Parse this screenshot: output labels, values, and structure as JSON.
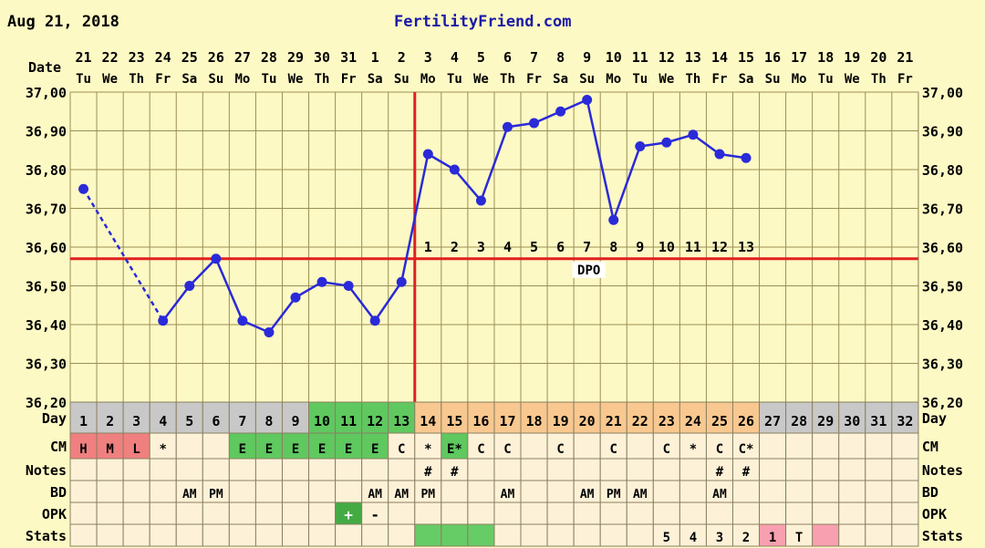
{
  "header": {
    "date": "Aug 21, 2018",
    "site": "FertilityFriend.com"
  },
  "chart_data": {
    "type": "line",
    "ylim": [
      36.2,
      37.0
    ],
    "y_ticks": [
      "37,00",
      "36,90",
      "36,80",
      "36,70",
      "36,60",
      "36,50",
      "36,40",
      "36,30",
      "36,20"
    ],
    "date_label": "Date",
    "dates": [
      "21",
      "22",
      "23",
      "24",
      "25",
      "26",
      "27",
      "28",
      "29",
      "30",
      "31",
      "1",
      "2",
      "3",
      "4",
      "5",
      "6",
      "7",
      "8",
      "9",
      "10",
      "11",
      "12",
      "13",
      "14",
      "15",
      "16",
      "17",
      "18",
      "19",
      "20",
      "21"
    ],
    "weekdays": [
      "Tu",
      "We",
      "Th",
      "Fr",
      "Sa",
      "Su",
      "Mo",
      "Tu",
      "We",
      "Th",
      "Fr",
      "Sa",
      "Su",
      "Mo",
      "Tu",
      "We",
      "Th",
      "Fr",
      "Sa",
      "Su",
      "Mo",
      "Tu",
      "We",
      "Th",
      "Fr",
      "Sa",
      "Su",
      "Mo",
      "Tu",
      "We",
      "Th",
      "Fr"
    ],
    "temperatures": [
      36.75,
      null,
      null,
      36.41,
      36.5,
      36.57,
      36.41,
      36.38,
      36.47,
      36.51,
      36.5,
      36.41,
      36.51,
      36.84,
      36.8,
      36.72,
      36.91,
      36.92,
      36.95,
      36.98,
      36.67,
      36.86,
      36.87,
      36.89,
      36.84,
      36.83,
      null,
      null,
      null,
      null,
      null,
      null
    ],
    "dotted_segment": [
      1,
      4
    ],
    "coverline": 36.57,
    "ovulation_day": 13,
    "dpo_numbers": [
      "1",
      "2",
      "3",
      "4",
      "5",
      "6",
      "7",
      "8",
      "9",
      "10",
      "11",
      "12",
      "13"
    ],
    "dpo_label": "DPO",
    "row_labels": [
      "Day",
      "CM",
      "Notes",
      "BD",
      "OPK",
      "Stats"
    ],
    "day_numbers": [
      "1",
      "2",
      "3",
      "4",
      "5",
      "6",
      "7",
      "8",
      "9",
      "10",
      "11",
      "12",
      "13",
      "14",
      "15",
      "16",
      "17",
      "18",
      "19",
      "20",
      "21",
      "22",
      "23",
      "24",
      "25",
      "26",
      "27",
      "28",
      "29",
      "30",
      "31",
      "32"
    ],
    "day_phase": [
      "g",
      "g",
      "g",
      "g",
      "g",
      "g",
      "g",
      "g",
      "g",
      "f",
      "f",
      "f",
      "f",
      "l",
      "l",
      "l",
      "l",
      "l",
      "l",
      "l",
      "l",
      "l",
      "l",
      "l",
      "l",
      "l",
      "g",
      "g",
      "g",
      "g",
      "g",
      "g"
    ],
    "cm": [
      "H",
      "M",
      "L",
      "*",
      "",
      "",
      "E",
      "E",
      "E",
      "E",
      "E",
      "E",
      "C",
      "*",
      "E*",
      "C",
      "C",
      "",
      "C",
      "",
      "C",
      "",
      "C",
      "*",
      "C",
      "C*",
      "",
      "",
      "",
      "",
      "",
      ""
    ],
    "notes": [
      "",
      "",
      "",
      "",
      "",
      "",
      "",
      "",
      "",
      "",
      "",
      "",
      "",
      "#",
      "#",
      "",
      "",
      "",
      "",
      "",
      "",
      "",
      "",
      "",
      "#",
      "#",
      "",
      "",
      "",
      "",
      "",
      ""
    ],
    "bd": [
      "",
      "",
      "",
      "",
      "AM",
      "PM",
      "",
      "",
      "",
      "",
      "",
      "AM",
      "AM",
      "PM",
      "",
      "",
      "AM",
      "",
      "",
      "AM",
      "PM",
      "AM",
      "",
      "",
      "AM",
      "",
      "",
      "",
      "",
      "",
      "",
      ""
    ],
    "opk": [
      "",
      "",
      "",
      "",
      "",
      "",
      "",
      "",
      "",
      "",
      "+",
      "-",
      "",
      "",
      "",
      "",
      "",
      "",
      "",
      "",
      "",
      "",
      "",
      "",
      "",
      "",
      "",
      "",
      "",
      "",
      "",
      ""
    ],
    "stats": [
      "",
      "",
      "",
      "",
      "",
      "",
      "",
      "",
      "",
      "",
      "",
      "",
      "",
      "",
      "",
      "",
      "",
      "",
      "",
      "",
      "",
      "",
      "5",
      "4",
      "3",
      "2",
      "1",
      "T",
      "",
      "",
      "",
      ""
    ],
    "stats_highlight": {
      "green": [
        13,
        14,
        15
      ],
      "pink": [
        26,
        28
      ]
    },
    "colors": {
      "line": "#2a2ad8",
      "coverline": "#e02020",
      "grid": "#9a8f55",
      "plot_bg": "#fdf9c4",
      "row_bg": "#fdf2d8",
      "gray": "#c8c8c8",
      "fertile": "#5fc85f",
      "luteal": "#f8c890",
      "cm_red": "#f08080",
      "opk_green": "#44aa44",
      "stats_green": "#66cc66",
      "stats_pink": "#f8a0b0"
    }
  }
}
